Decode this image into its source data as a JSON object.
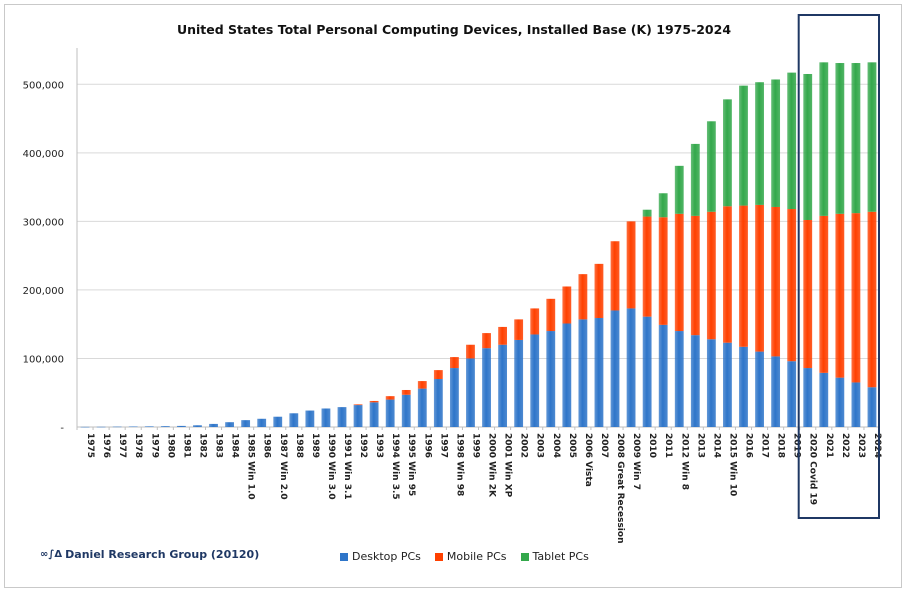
{
  "chart_data": {
    "type": "bar",
    "stacked": true,
    "title": "United States Total Personal Computing Devices, Installed Base (K) 1975-2024",
    "xlabel": "",
    "ylabel": "",
    "ylim": [
      0,
      550000
    ],
    "yticks": [
      {
        "value": 0,
        "label": "-"
      },
      {
        "value": 100000,
        "label": "100,000"
      },
      {
        "value": 200000,
        "label": "200,000"
      },
      {
        "value": 300000,
        "label": "300,000"
      },
      {
        "value": 400000,
        "label": "400,000"
      },
      {
        "value": 500000,
        "label": "500,000"
      }
    ],
    "grid": true,
    "legend_position": "bottom",
    "categories": [
      "1975",
      "1976",
      "1977",
      "1978",
      "1979",
      "1980",
      "1981",
      "1982",
      "1983",
      "1984",
      "1985 Win 1.0",
      "1986",
      "1987 Win 2.0",
      "1988",
      "1989",
      "1990 Win 3.0",
      "1991 Win 3.1",
      "1992",
      "1993",
      "1994 Win 3.5",
      "1995 Win 95",
      "1996",
      "1997",
      "1998 Win 98",
      "1999",
      "2000 Win 2K",
      "2001 Win XP",
      "2002",
      "2003",
      "2004",
      "2005",
      "2006 Vista",
      "2007",
      "2008 Great Recession",
      "2009 Win 7",
      "2010",
      "2011",
      "2012 Win 8",
      "2013",
      "2014",
      "2015 Win 10",
      "2016",
      "2017",
      "2018",
      "2019",
      "2020 Covid 19",
      "2021",
      "2022",
      "2023",
      "2024"
    ],
    "series": [
      {
        "name": "Desktop PCs",
        "color": "#2e75c9",
        "values": [
          200,
          300,
          500,
          700,
          900,
          1200,
          1600,
          2500,
          4500,
          7000,
          10000,
          12000,
          15000,
          20000,
          24000,
          27000,
          29000,
          32000,
          36000,
          40000,
          47000,
          56000,
          70000,
          86000,
          100000,
          115000,
          120000,
          127000,
          135000,
          140000,
          151000,
          157000,
          159000,
          170000,
          173000,
          161000,
          149000,
          140000,
          134000,
          128000,
          123000,
          117000,
          110000,
          103000,
          96000,
          86000,
          79000,
          72000,
          65000,
          58000
        ]
      },
      {
        "name": "Mobile PCs",
        "color": "#ff4000",
        "values": [
          0,
          0,
          0,
          0,
          0,
          0,
          0,
          0,
          0,
          0,
          0,
          0,
          0,
          0,
          0,
          0,
          0,
          1000,
          2000,
          5000,
          7000,
          11000,
          13000,
          16000,
          20000,
          22000,
          26000,
          30000,
          38000,
          47000,
          54000,
          66000,
          79000,
          101000,
          127000,
          146000,
          157000,
          171000,
          174000,
          186000,
          199000,
          206000,
          214000,
          218000,
          222000,
          216000,
          229000,
          239000,
          247000,
          256000
        ]
      },
      {
        "name": "Tablet PCs",
        "color": "#33a84b",
        "values": [
          0,
          0,
          0,
          0,
          0,
          0,
          0,
          0,
          0,
          0,
          0,
          0,
          0,
          0,
          0,
          0,
          0,
          0,
          0,
          0,
          0,
          0,
          0,
          0,
          0,
          0,
          0,
          0,
          0,
          0,
          0,
          0,
          0,
          0,
          0,
          10000,
          35000,
          70000,
          105000,
          132000,
          156000,
          175000,
          179000,
          186000,
          199000,
          213000,
          224000,
          220000,
          219000,
          218000
        ]
      }
    ],
    "highlight_range": [
      "2020 Covid 19",
      "2024"
    ],
    "highlight_color": "#1f3864"
  },
  "footer": {
    "credit": "Daniel Research Group (20120)",
    "logo_text": "∞∫Δ"
  }
}
